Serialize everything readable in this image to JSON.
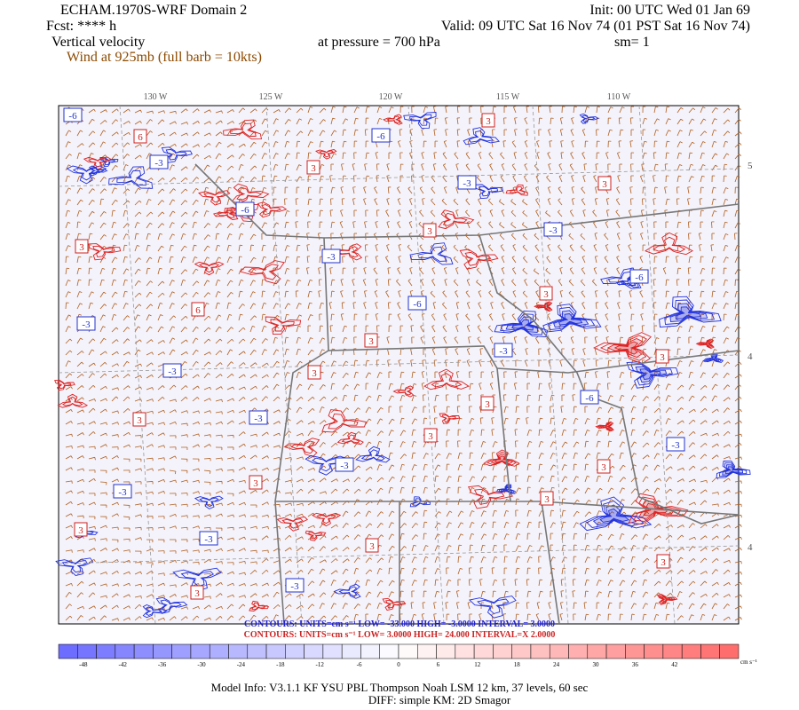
{
  "header": {
    "title": "ECHAM.1970S-WRF Domain 2",
    "fcst": "Fcst: **** h",
    "field": "Vertical velocity",
    "wind": "Wind at 925mb (full barb = 10kts)",
    "init": "Init: 00 UTC Wed 01 Jan 69",
    "valid": "Valid: 09 UTC Sat 16 Nov 74 (01 PST Sat 16 Nov 74)",
    "pressure": "at pressure =  700 hPa",
    "smooth": "sm= 1"
  },
  "map": {
    "lon_labels": [
      "130 W",
      "125 W",
      "120 W",
      "115 W",
      "110 W"
    ],
    "lat_labels": [
      "5",
      "4",
      "4"
    ],
    "contour_labels": [
      "-6",
      "-3",
      "-6",
      "-3",
      "-6",
      "-3",
      "-6",
      "-3",
      "-3",
      "-3",
      "-3",
      "-6",
      "-3",
      "-3",
      "-6",
      "-3",
      "-3",
      "-3",
      "-3",
      "3",
      "3",
      "3",
      "3",
      "3",
      "3",
      "3",
      "3",
      "3",
      "3",
      "3",
      "3",
      "3",
      "3",
      "3",
      "6",
      "3",
      "3",
      "3",
      "3",
      "6"
    ]
  },
  "contours": {
    "negative": "CONTOURS:  UNITS=cm s⁻¹  LOW= -33.000  HIGH= -3.0000  INTERVAL= 3.0000",
    "positive": "CONTOURS:  UNITS=cm s⁻¹  LOW=  3.0000  HIGH=  24.000  INTERVAL=X  2.0000"
  },
  "colorbar": {
    "labels": [
      "-48",
      "-42",
      "-36",
      "-30",
      "-24",
      "-18",
      "-12",
      "-6",
      "0",
      "6",
      "12",
      "18",
      "24",
      "30",
      "36",
      "42"
    ],
    "units": "cm s⁻¹"
  },
  "footer": {
    "model_info": "Model Info: V3.1.1    KF      YSU PBL  Thompson    Noah LSM  12 km,    37 levels,    60 sec",
    "diff": "DIFF: simple KM: 2D Smagor"
  }
}
